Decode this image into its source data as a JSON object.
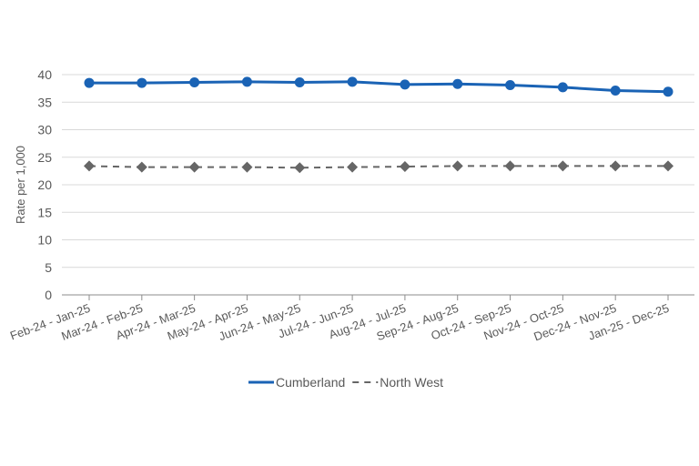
{
  "chart_data": {
    "type": "line",
    "title": "",
    "xlabel": "",
    "ylabel": "Rate per 1,000",
    "ylim": [
      0,
      40
    ],
    "yticks": [
      0,
      5,
      10,
      15,
      20,
      25,
      30,
      35,
      40
    ],
    "grid": "horizontal",
    "legend_position": "bottom",
    "categories": [
      "Feb-24 - Jan-25",
      "Mar-24 - Feb-25",
      "Apr-24 - Mar-25",
      "May-24 - Apr-25",
      "Jun-24 - May-25",
      "Jul-24 - Jun-25",
      "Aug-24 - Jul-25",
      "Sep-24 - Aug-25",
      "Oct-24 - Sep-25",
      "Nov-24 - Oct-25",
      "Dec-24 - Nov-25",
      "Jan-25 - Dec-25"
    ],
    "series": [
      {
        "name": "Cumberland",
        "color": "#1a63b5",
        "line_style": "solid",
        "marker": "circle",
        "values": [
          38.5,
          38.5,
          38.6,
          38.7,
          38.6,
          38.7,
          38.2,
          38.3,
          38.1,
          37.7,
          37.1,
          36.9
        ]
      },
      {
        "name": "North West",
        "color": "#666666",
        "line_style": "dashed",
        "marker": "diamond",
        "values": [
          23.4,
          23.2,
          23.2,
          23.2,
          23.1,
          23.2,
          23.3,
          23.4,
          23.4,
          23.4,
          23.4,
          23.4
        ]
      }
    ]
  }
}
